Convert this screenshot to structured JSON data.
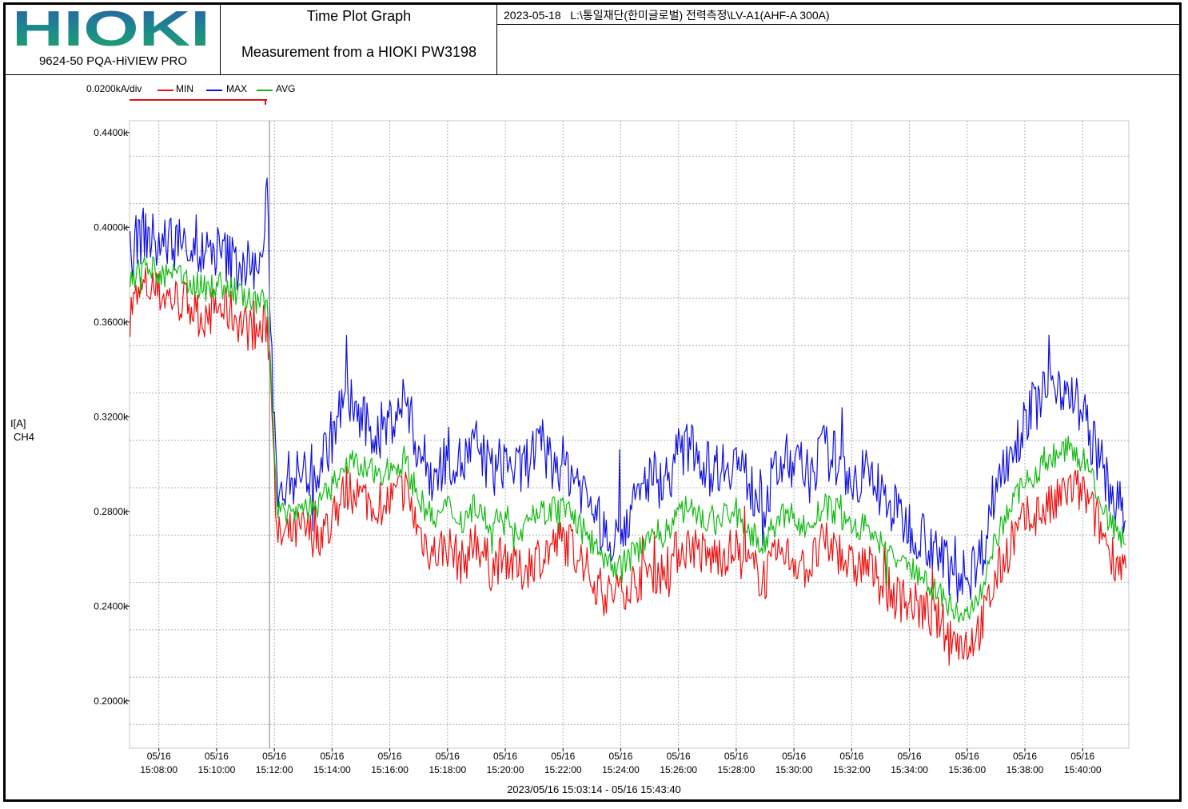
{
  "header": {
    "logo_text": "HIOKI",
    "software_name": "9624-50 PQA-HiVIEW PRO",
    "graph_title": "Time Plot Graph",
    "graph_subtitle": "Measurement from a HIOKI PW3198",
    "info_date": "2023-05-18",
    "info_path": "L:\\통일재단(한미글로벌) 전력측정\\LV-A1(AHF-A 300A)"
  },
  "legend": {
    "scale": "0.0200kA/div",
    "items": [
      {
        "label": "MIN",
        "color": "#ee1111"
      },
      {
        "label": "MAX",
        "color": "#1111dd"
      },
      {
        "label": "AVG",
        "color": "#11bb11"
      }
    ]
  },
  "axis": {
    "y_label_line1": "I[A]",
    "y_label_line2": "CH4"
  },
  "footer": {
    "time_range": "2023/05/16 15:03:14 - 05/16 15:43:40"
  },
  "chart_data": {
    "type": "line",
    "ylim": [
      0.18,
      0.445
    ],
    "y_unit": "kA",
    "y_ticks": [
      {
        "value": 0.44,
        "label": "0.4400k"
      },
      {
        "value": 0.4,
        "label": "0.4000k"
      },
      {
        "value": 0.36,
        "label": "0.3600k"
      },
      {
        "value": 0.32,
        "label": "0.3200k"
      },
      {
        "value": 0.28,
        "label": "0.2800k"
      },
      {
        "value": 0.24,
        "label": "0.2400k"
      },
      {
        "value": 0.2,
        "label": "0.2000k"
      }
    ],
    "xlim": [
      "15:06:59",
      "15:41:36"
    ],
    "x_ticks": [
      {
        "value": "15:08:00",
        "date": "05/16",
        "time": "15:08:00"
      },
      {
        "value": "15:10:00",
        "date": "05/16",
        "time": "15:10:00"
      },
      {
        "value": "15:12:00",
        "date": "05/16",
        "time": "15:12:00"
      },
      {
        "value": "15:14:00",
        "date": "05/16",
        "time": "15:14:00"
      },
      {
        "value": "15:16:00",
        "date": "05/16",
        "time": "15:16:00"
      },
      {
        "value": "15:18:00",
        "date": "05/16",
        "time": "15:18:00"
      },
      {
        "value": "15:20:00",
        "date": "05/16",
        "time": "15:20:00"
      },
      {
        "value": "15:22:00",
        "date": "05/16",
        "time": "15:22:00"
      },
      {
        "value": "15:24:00",
        "date": "05/16",
        "time": "15:24:00"
      },
      {
        "value": "15:26:00",
        "date": "05/16",
        "time": "15:26:00"
      },
      {
        "value": "15:28:00",
        "date": "05/16",
        "time": "15:28:00"
      },
      {
        "value": "15:30:00",
        "date": "05/16",
        "time": "15:30:00"
      },
      {
        "value": "15:32:00",
        "date": "05/16",
        "time": "15:32:00"
      },
      {
        "value": "15:34:00",
        "date": "05/16",
        "time": "15:34:00"
      },
      {
        "value": "15:36:00",
        "date": "05/16",
        "time": "15:36:00"
      },
      {
        "value": "15:38:00",
        "date": "05/16",
        "time": "15:38:00"
      },
      {
        "value": "15:40:00",
        "date": "05/16",
        "time": "15:40:00"
      }
    ],
    "cursor_time": "15:11:50",
    "grid": true,
    "series": [
      {
        "name": "MIN",
        "color": "#ee1111",
        "x": [
          "15:07:00",
          "15:07:30",
          "15:08:00",
          "15:08:30",
          "15:09:00",
          "15:09:30",
          "15:10:00",
          "15:10:30",
          "15:11:00",
          "15:11:30",
          "15:11:45",
          "15:11:55",
          "15:12:05",
          "15:12:30",
          "15:13:00",
          "15:13:30",
          "15:14:00",
          "15:14:30",
          "15:15:00",
          "15:15:30",
          "15:16:00",
          "15:16:30",
          "15:17:00",
          "15:17:30",
          "15:18:00",
          "15:18:30",
          "15:19:00",
          "15:19:30",
          "15:20:00",
          "15:20:30",
          "15:21:00",
          "15:21:30",
          "15:22:00",
          "15:22:30",
          "15:23:00",
          "15:23:30",
          "15:24:00",
          "15:24:30",
          "15:25:00",
          "15:25:30",
          "15:26:00",
          "15:26:30",
          "15:27:00",
          "15:27:30",
          "15:28:00",
          "15:28:30",
          "15:29:00",
          "15:29:30",
          "15:30:00",
          "15:30:30",
          "15:31:00",
          "15:31:30",
          "15:32:00",
          "15:32:30",
          "15:33:00",
          "15:33:30",
          "15:34:00",
          "15:34:30",
          "15:35:00",
          "15:35:30",
          "15:36:00",
          "15:36:30",
          "15:37:00",
          "15:37:30",
          "15:38:00",
          "15:38:30",
          "15:39:00",
          "15:39:30",
          "15:40:00",
          "15:40:30",
          "15:41:00",
          "15:41:30"
        ],
        "values": [
          0.365,
          0.375,
          0.372,
          0.37,
          0.368,
          0.362,
          0.366,
          0.364,
          0.358,
          0.355,
          0.36,
          0.33,
          0.268,
          0.27,
          0.272,
          0.27,
          0.276,
          0.29,
          0.286,
          0.284,
          0.284,
          0.29,
          0.272,
          0.262,
          0.266,
          0.258,
          0.268,
          0.256,
          0.262,
          0.254,
          0.26,
          0.264,
          0.268,
          0.262,
          0.252,
          0.244,
          0.248,
          0.25,
          0.256,
          0.254,
          0.264,
          0.266,
          0.26,
          0.262,
          0.264,
          0.256,
          0.252,
          0.262,
          0.26,
          0.256,
          0.266,
          0.264,
          0.256,
          0.258,
          0.25,
          0.244,
          0.242,
          0.238,
          0.234,
          0.226,
          0.224,
          0.232,
          0.252,
          0.266,
          0.276,
          0.28,
          0.282,
          0.29,
          0.288,
          0.276,
          0.262,
          0.256
        ]
      },
      {
        "name": "MAX",
        "color": "#1111dd",
        "x": [
          "15:07:00",
          "15:07:30",
          "15:08:00",
          "15:08:30",
          "15:09:00",
          "15:09:30",
          "15:10:00",
          "15:10:30",
          "15:11:00",
          "15:11:30",
          "15:11:45",
          "15:11:55",
          "15:12:05",
          "15:12:30",
          "15:13:00",
          "15:13:30",
          "15:14:00",
          "15:14:30",
          "15:15:00",
          "15:15:30",
          "15:16:00",
          "15:16:30",
          "15:17:00",
          "15:17:30",
          "15:18:00",
          "15:18:30",
          "15:19:00",
          "15:19:30",
          "15:20:00",
          "15:20:30",
          "15:21:00",
          "15:21:30",
          "15:22:00",
          "15:22:30",
          "15:23:00",
          "15:23:30",
          "15:24:00",
          "15:24:30",
          "15:25:00",
          "15:25:30",
          "15:26:00",
          "15:26:30",
          "15:27:00",
          "15:27:30",
          "15:28:00",
          "15:28:30",
          "15:29:00",
          "15:29:30",
          "15:30:00",
          "15:30:30",
          "15:31:00",
          "15:31:30",
          "15:32:00",
          "15:32:30",
          "15:33:00",
          "15:33:30",
          "15:34:00",
          "15:34:30",
          "15:35:00",
          "15:35:30",
          "15:36:00",
          "15:36:30",
          "15:37:00",
          "15:37:30",
          "15:38:00",
          "15:38:30",
          "15:39:00",
          "15:39:30",
          "15:40:00",
          "15:40:30",
          "15:41:00",
          "15:41:30"
        ],
        "values": [
          0.39,
          0.398,
          0.392,
          0.396,
          0.392,
          0.388,
          0.39,
          0.386,
          0.384,
          0.382,
          0.41,
          0.345,
          0.292,
          0.294,
          0.296,
          0.298,
          0.312,
          0.33,
          0.318,
          0.312,
          0.318,
          0.328,
          0.306,
          0.294,
          0.304,
          0.3,
          0.308,
          0.296,
          0.302,
          0.296,
          0.306,
          0.302,
          0.3,
          0.294,
          0.282,
          0.268,
          0.274,
          0.282,
          0.296,
          0.292,
          0.304,
          0.308,
          0.298,
          0.3,
          0.302,
          0.29,
          0.284,
          0.3,
          0.302,
          0.294,
          0.306,
          0.302,
          0.292,
          0.296,
          0.288,
          0.28,
          0.274,
          0.27,
          0.262,
          0.254,
          0.252,
          0.262,
          0.292,
          0.306,
          0.318,
          0.328,
          0.336,
          0.332,
          0.322,
          0.304,
          0.288,
          0.276
        ]
      },
      {
        "name": "AVG",
        "color": "#11bb11",
        "x": [
          "15:07:00",
          "15:07:30",
          "15:08:00",
          "15:08:30",
          "15:09:00",
          "15:09:30",
          "15:10:00",
          "15:10:30",
          "15:11:00",
          "15:11:30",
          "15:11:45",
          "15:11:55",
          "15:12:05",
          "15:12:30",
          "15:13:00",
          "15:13:30",
          "15:14:00",
          "15:14:30",
          "15:15:00",
          "15:15:30",
          "15:16:00",
          "15:16:30",
          "15:17:00",
          "15:17:30",
          "15:18:00",
          "15:18:30",
          "15:19:00",
          "15:19:30",
          "15:20:00",
          "15:20:30",
          "15:21:00",
          "15:21:30",
          "15:22:00",
          "15:22:30",
          "15:23:00",
          "15:23:30",
          "15:24:00",
          "15:24:30",
          "15:25:00",
          "15:25:30",
          "15:26:00",
          "15:26:30",
          "15:27:00",
          "15:27:30",
          "15:28:00",
          "15:28:30",
          "15:29:00",
          "15:29:30",
          "15:30:00",
          "15:30:30",
          "15:31:00",
          "15:31:30",
          "15:32:00",
          "15:32:30",
          "15:33:00",
          "15:33:30",
          "15:34:00",
          "15:34:30",
          "15:35:00",
          "15:35:30",
          "15:36:00",
          "15:36:30",
          "15:37:00",
          "15:37:30",
          "15:38:00",
          "15:38:30",
          "15:39:00",
          "15:39:30",
          "15:40:00",
          "15:40:30",
          "15:41:00",
          "15:41:30"
        ],
        "values": [
          0.376,
          0.384,
          0.38,
          0.38,
          0.378,
          0.374,
          0.376,
          0.374,
          0.37,
          0.366,
          0.372,
          0.336,
          0.28,
          0.28,
          0.282,
          0.282,
          0.29,
          0.302,
          0.298,
          0.296,
          0.298,
          0.302,
          0.286,
          0.276,
          0.282,
          0.276,
          0.284,
          0.272,
          0.278,
          0.272,
          0.28,
          0.28,
          0.282,
          0.276,
          0.266,
          0.256,
          0.258,
          0.262,
          0.272,
          0.27,
          0.28,
          0.282,
          0.276,
          0.278,
          0.28,
          0.27,
          0.266,
          0.278,
          0.278,
          0.272,
          0.282,
          0.28,
          0.272,
          0.274,
          0.266,
          0.26,
          0.256,
          0.252,
          0.246,
          0.238,
          0.236,
          0.244,
          0.268,
          0.282,
          0.292,
          0.298,
          0.304,
          0.306,
          0.302,
          0.288,
          0.274,
          0.266
        ]
      }
    ]
  }
}
